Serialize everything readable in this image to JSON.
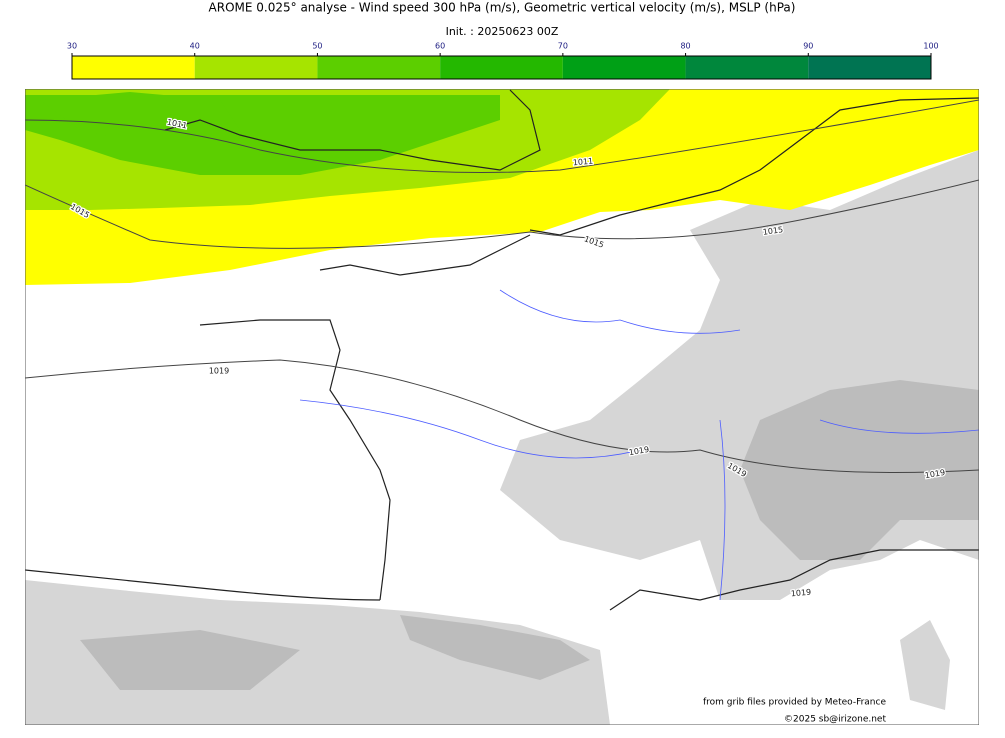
{
  "header": {
    "title": "AROME 0.025° analyse - Wind speed 300 hPa (m/s), Geometric vertical velocity (m/s), MSLP (hPa)",
    "init": "Init. : 20250623 00Z"
  },
  "colorbar": {
    "ticks": [
      30,
      40,
      50,
      60,
      70,
      80,
      90,
      100
    ],
    "colors": [
      "#ffff00",
      "#a6e400",
      "#5ccf00",
      "#24b800",
      "#00a016",
      "#00873c",
      "#007452"
    ]
  },
  "map": {
    "isobar_labels": [
      "1011",
      "1011",
      "1015",
      "1015",
      "1015",
      "1019",
      "1019",
      "1019",
      "1019",
      "1019"
    ]
  },
  "credits": [
    "from grib files provided by Meteo-France",
    "©2025 sb@irizone.net"
  ]
}
